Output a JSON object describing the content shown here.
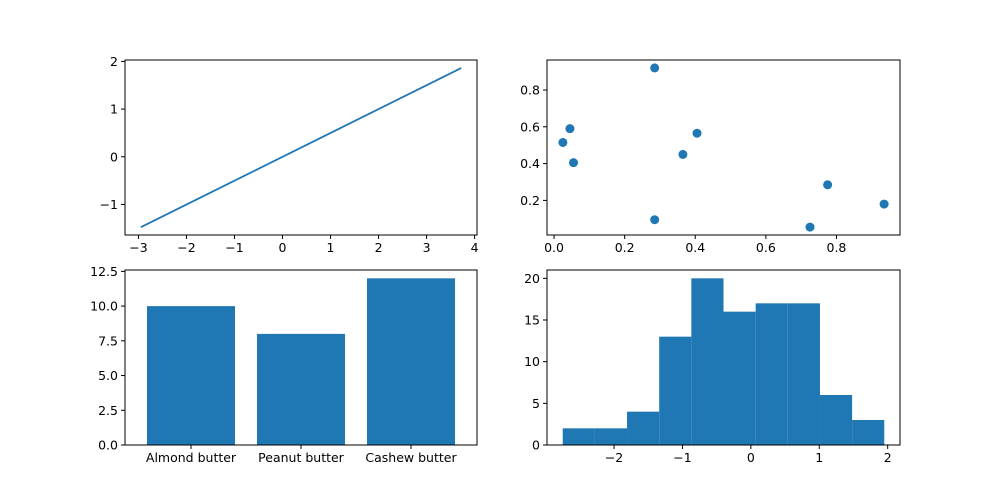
{
  "colors": {
    "series": "#1f77b4",
    "axis": "#000000",
    "background": "#ffffff"
  },
  "chart_data": [
    {
      "type": "line",
      "x": [
        -2.95,
        3.72
      ],
      "y": [
        -1.475,
        1.86
      ],
      "xlim": [
        -3.28,
        4.05
      ],
      "ylim": [
        -1.64,
        2.03
      ],
      "xticks": [
        -3,
        -2,
        -1,
        0,
        1,
        2,
        3,
        4
      ],
      "xtick_labels": [
        "−3",
        "−2",
        "−1",
        "0",
        "1",
        "2",
        "3",
        "4"
      ],
      "yticks": [
        -1,
        0,
        1,
        2
      ],
      "ytick_labels": [
        "−1",
        "0",
        "1",
        "2"
      ],
      "grid": false
    },
    {
      "type": "scatter",
      "x": [
        0.285,
        0.045,
        0.405,
        0.025,
        0.365,
        0.055,
        0.775,
        0.935,
        0.285,
        0.725
      ],
      "y": [
        0.92,
        0.59,
        0.565,
        0.515,
        0.45,
        0.405,
        0.285,
        0.18,
        0.095,
        0.055
      ],
      "xlim": [
        -0.02,
        0.98
      ],
      "ylim": [
        0.012,
        0.963
      ],
      "xticks": [
        0.0,
        0.2,
        0.4,
        0.6,
        0.8
      ],
      "xtick_labels": [
        "0.0",
        "0.2",
        "0.4",
        "0.6",
        "0.8"
      ],
      "yticks": [
        0.2,
        0.4,
        0.6,
        0.8
      ],
      "ytick_labels": [
        "0.2",
        "0.4",
        "0.6",
        "0.8"
      ],
      "grid": false
    },
    {
      "type": "bar",
      "categories": [
        "Almond butter",
        "Peanut butter",
        "Cashew butter"
      ],
      "values": [
        10,
        8,
        12
      ],
      "xlim": [
        -0.6,
        2.6
      ],
      "ylim": [
        0,
        12.6
      ],
      "yticks": [
        0,
        2.5,
        5,
        7.5,
        10,
        12.5
      ],
      "ytick_labels": [
        "0.0",
        "2.5",
        "5.0",
        "7.5",
        "10.0",
        "12.5"
      ],
      "grid": false
    },
    {
      "type": "histogram",
      "bin_edges": [
        -2.75,
        -2.28,
        -1.81,
        -1.34,
        -0.87,
        -0.4,
        0.07,
        0.54,
        1.01,
        1.48,
        1.95
      ],
      "counts": [
        2,
        2,
        4,
        13,
        20,
        16,
        17,
        17,
        6,
        3
      ],
      "xlim": [
        -2.98,
        2.18
      ],
      "ylim": [
        0,
        21
      ],
      "xticks": [
        -2,
        -1,
        0,
        1,
        2
      ],
      "xtick_labels": [
        "−2",
        "−1",
        "0",
        "1",
        "2"
      ],
      "yticks": [
        0,
        5,
        10,
        15,
        20
      ],
      "ytick_labels": [
        "0",
        "5",
        "10",
        "15",
        "20"
      ],
      "grid": false
    }
  ]
}
